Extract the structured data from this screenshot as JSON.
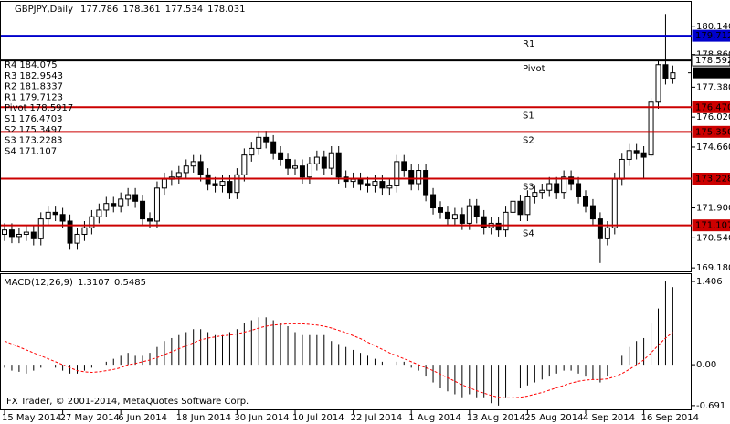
{
  "chart_data": {
    "type": "candlestick",
    "title": "GBPJPY,Daily",
    "copyright": "IFX Trader, © 2001-2014, MetaQuotes Software Corp.",
    "categories": [
      "15 May 2014",
      null,
      null,
      null,
      null,
      null,
      null,
      null,
      "27 May 2014",
      null,
      null,
      null,
      null,
      null,
      null,
      null,
      "6 Jun 2014",
      null,
      null,
      null,
      null,
      null,
      null,
      null,
      "18 Jun 2014",
      null,
      null,
      null,
      null,
      null,
      null,
      null,
      "30 Jun 2014",
      null,
      null,
      null,
      null,
      null,
      null,
      null,
      "10 Jul 2014",
      null,
      null,
      null,
      null,
      null,
      null,
      null,
      "22 Jul 2014",
      null,
      null,
      null,
      null,
      null,
      null,
      null,
      "1 Aug 2014",
      null,
      null,
      null,
      null,
      null,
      null,
      null,
      "13 Aug 2014",
      null,
      null,
      null,
      null,
      null,
      null,
      null,
      "25 Aug 2014",
      null,
      null,
      null,
      null,
      null,
      null,
      null,
      "4 Sep 2014",
      null,
      null,
      null,
      null,
      null,
      null,
      null,
      "16 Sep 2014",
      null,
      null,
      null,
      null
    ],
    "open": [
      170.7,
      170.9,
      170.6,
      170.7,
      170.8,
      170.5,
      171.4,
      171.7,
      171.6,
      171.3,
      170.3,
      170.7,
      171.0,
      171.5,
      171.8,
      172.1,
      172.0,
      172.3,
      172.5,
      172.2,
      171.4,
      171.3,
      172.8,
      173.2,
      173.3,
      173.5,
      173.8,
      174.0,
      173.4,
      173.0,
      172.9,
      173.1,
      172.6,
      173.4,
      174.3,
      174.6,
      175.1,
      174.9,
      174.4,
      174.1,
      173.7,
      173.8,
      173.3,
      173.9,
      174.2,
      173.7,
      174.4,
      173.3,
      173.1,
      173.2,
      173.0,
      172.9,
      173.1,
      172.8,
      172.9,
      174.0,
      173.6,
      173.0,
      173.6,
      172.5,
      171.9,
      171.7,
      171.4,
      171.6,
      171.2,
      172.0,
      171.5,
      171.0,
      171.2,
      170.9,
      171.7,
      172.2,
      171.6,
      172.4,
      172.6,
      172.7,
      173.0,
      172.6,
      173.3,
      173.0,
      172.4,
      172.0,
      171.4,
      170.5,
      171.0,
      173.2,
      174.1,
      174.5,
      174.4,
      174.3,
      176.7,
      178.4,
      177.786
    ],
    "high": [
      171.2,
      171.2,
      171.0,
      171.1,
      171.1,
      171.7,
      172.0,
      172.0,
      171.9,
      171.6,
      171.0,
      171.3,
      171.8,
      172.1,
      172.4,
      172.4,
      172.6,
      172.8,
      172.8,
      172.5,
      171.7,
      173.1,
      173.5,
      173.6,
      173.8,
      174.1,
      174.3,
      174.3,
      173.7,
      173.3,
      173.4,
      173.4,
      173.7,
      174.6,
      174.9,
      175.4,
      175.4,
      175.2,
      174.7,
      174.4,
      174.1,
      174.1,
      174.2,
      174.5,
      174.5,
      174.7,
      174.7,
      173.6,
      173.5,
      173.5,
      173.3,
      173.4,
      173.4,
      173.2,
      174.3,
      174.3,
      173.9,
      173.9,
      173.9,
      172.8,
      172.2,
      172.0,
      171.9,
      171.9,
      172.3,
      172.3,
      171.8,
      171.5,
      171.5,
      172.0,
      172.5,
      172.5,
      172.7,
      172.9,
      173.0,
      173.3,
      173.3,
      173.6,
      173.6,
      173.3,
      172.7,
      172.3,
      171.7,
      171.3,
      173.5,
      174.4,
      174.8,
      174.8,
      174.7,
      176.9,
      178.6,
      180.7,
      178.361
    ],
    "low": [
      170.4,
      170.3,
      170.3,
      170.4,
      170.2,
      170.2,
      171.1,
      171.3,
      171.0,
      170.0,
      170.0,
      170.4,
      170.7,
      171.2,
      171.5,
      171.7,
      171.7,
      172.0,
      171.9,
      171.1,
      171.0,
      171.0,
      172.5,
      172.9,
      173.0,
      173.2,
      173.5,
      173.1,
      172.7,
      172.6,
      172.6,
      172.3,
      172.3,
      173.1,
      174.0,
      174.3,
      174.6,
      174.1,
      173.8,
      173.4,
      173.4,
      173.0,
      173.0,
      173.6,
      173.4,
      173.4,
      173.0,
      172.8,
      172.8,
      172.7,
      172.6,
      172.6,
      172.5,
      172.5,
      172.6,
      173.3,
      172.7,
      172.7,
      172.2,
      171.6,
      171.4,
      171.1,
      171.1,
      170.9,
      170.9,
      171.2,
      170.7,
      170.7,
      170.6,
      170.6,
      171.4,
      171.3,
      171.3,
      172.1,
      172.3,
      172.4,
      172.3,
      172.3,
      172.7,
      172.1,
      171.7,
      171.1,
      169.4,
      170.2,
      170.7,
      172.9,
      173.8,
      174.1,
      173.2,
      174.2,
      176.4,
      177.5,
      177.534
    ],
    "close": [
      170.9,
      170.6,
      170.7,
      170.8,
      170.5,
      171.4,
      171.7,
      171.6,
      171.3,
      170.3,
      170.7,
      171.0,
      171.5,
      171.8,
      172.1,
      172.0,
      172.3,
      172.5,
      172.2,
      171.4,
      171.3,
      172.8,
      173.2,
      173.3,
      173.5,
      173.8,
      174.0,
      173.4,
      173.0,
      172.9,
      173.1,
      172.6,
      173.4,
      174.3,
      174.6,
      175.1,
      174.9,
      174.4,
      174.1,
      173.7,
      173.8,
      173.3,
      173.9,
      174.2,
      173.7,
      174.4,
      173.3,
      173.1,
      173.2,
      173.0,
      172.9,
      173.1,
      172.8,
      172.9,
      174.0,
      173.6,
      173.0,
      173.6,
      172.5,
      171.9,
      171.7,
      171.4,
      171.6,
      171.2,
      172.0,
      171.5,
      171.0,
      171.2,
      170.9,
      171.7,
      172.2,
      171.6,
      172.4,
      172.6,
      172.7,
      173.0,
      172.6,
      173.3,
      173.0,
      172.4,
      172.0,
      171.4,
      170.5,
      171.0,
      173.2,
      174.1,
      174.5,
      174.4,
      174.2,
      176.7,
      178.4,
      177.79,
      178.031
    ],
    "ylim": [
      169.02,
      181.25
    ],
    "yticks": [
      {
        "value": 180.14,
        "label": "180.140"
      },
      {
        "value": 178.86,
        "label": "178.860"
      },
      {
        "value": 177.38,
        "label": "177.380"
      },
      {
        "value": 176.02,
        "label": "176.020"
      },
      {
        "value": 174.66,
        "label": "174.660"
      },
      {
        "value": 171.9,
        "label": "171.900"
      },
      {
        "value": 170.54,
        "label": "170.540"
      },
      {
        "value": 169.18,
        "label": "169.180"
      }
    ],
    "levels": [
      {
        "name": "R1",
        "value": 179.712,
        "color": "#0000cc"
      },
      {
        "name": "Pivot",
        "value": 178.592,
        "color": "#000000"
      },
      {
        "name": "S1",
        "value": 176.47,
        "value_label": "176.470",
        "color": "#cc0000"
      },
      {
        "name": "S2",
        "value": 175.35,
        "value_label": "175.350",
        "color": "#cc0000"
      },
      {
        "name": "S3",
        "value": 173.228,
        "color": "#cc0000"
      },
      {
        "name": "S4",
        "value": 171.107,
        "color": "#cc0000"
      }
    ],
    "pivot_info": [
      {
        "name": "R4",
        "value": 184.075
      },
      {
        "name": "R3",
        "value": 182.9543
      },
      {
        "name": "R2",
        "value": 181.8337
      },
      {
        "name": "R1",
        "value": 179.7123
      },
      {
        "name": "Pivot",
        "value": 178.5917
      },
      {
        "name": "S1",
        "value": 176.4703
      },
      {
        "name": "S2",
        "value": 175.3497
      },
      {
        "name": "S3",
        "value": 173.2283
      },
      {
        "name": "S4",
        "value": 171.107
      }
    ],
    "macd": {
      "type": "macd",
      "title": "MACD(12,26,9)",
      "values": [
        -0.05,
        -0.1,
        -0.12,
        -0.15,
        -0.1,
        -0.05,
        0.0,
        -0.05,
        -0.1,
        -0.15,
        -0.15,
        -0.1,
        -0.05,
        0.0,
        0.05,
        0.1,
        0.15,
        0.2,
        0.15,
        0.15,
        0.2,
        0.3,
        0.4,
        0.45,
        0.5,
        0.55,
        0.6,
        0.6,
        0.55,
        0.5,
        0.5,
        0.55,
        0.6,
        0.7,
        0.75,
        0.8,
        0.8,
        0.75,
        0.7,
        0.65,
        0.55,
        0.5,
        0.5,
        0.5,
        0.5,
        0.4,
        0.35,
        0.3,
        0.25,
        0.2,
        0.15,
        0.1,
        0.05,
        0.0,
        0.05,
        0.05,
        -0.05,
        -0.1,
        -0.2,
        -0.3,
        -0.4,
        -0.45,
        -0.5,
        -0.55,
        -0.5,
        -0.55,
        -0.55,
        -0.65,
        -0.691,
        -0.55,
        -0.45,
        -0.4,
        -0.35,
        -0.3,
        -0.25,
        -0.2,
        -0.15,
        -0.1,
        -0.1,
        -0.15,
        -0.2,
        -0.25,
        -0.3,
        -0.2,
        0.0,
        0.15,
        0.3,
        0.4,
        0.45,
        0.7,
        0.95,
        1.406,
        1.3107
      ],
      "signal": [
        0.4,
        0.35,
        0.3,
        0.25,
        0.2,
        0.15,
        0.1,
        0.05,
        0.0,
        -0.05,
        -0.1,
        -0.12,
        -0.13,
        -0.12,
        -0.1,
        -0.08,
        -0.05,
        0.0,
        0.02,
        0.05,
        0.08,
        0.12,
        0.17,
        0.22,
        0.27,
        0.32,
        0.37,
        0.42,
        0.45,
        0.47,
        0.49,
        0.5,
        0.52,
        0.55,
        0.58,
        0.62,
        0.65,
        0.67,
        0.68,
        0.69,
        0.69,
        0.69,
        0.68,
        0.67,
        0.65,
        0.62,
        0.58,
        0.54,
        0.49,
        0.44,
        0.38,
        0.32,
        0.26,
        0.2,
        0.15,
        0.1,
        0.05,
        0.0,
        -0.05,
        -0.1,
        -0.16,
        -0.22,
        -0.28,
        -0.34,
        -0.39,
        -0.44,
        -0.48,
        -0.52,
        -0.55,
        -0.56,
        -0.56,
        -0.55,
        -0.53,
        -0.5,
        -0.47,
        -0.43,
        -0.39,
        -0.35,
        -0.31,
        -0.28,
        -0.26,
        -0.25,
        -0.25,
        -0.24,
        -0.2,
        -0.15,
        -0.08,
        0.0,
        0.08,
        0.2,
        0.33,
        0.45,
        0.5485
      ],
      "color": "#000000",
      "signal_color": "#ff0000",
      "ylim": [
        -0.77,
        1.53
      ],
      "yticks": [
        1.406,
        {
          "value": 0,
          "label": "0.00"
        },
        -0.691
      ]
    }
  }
}
